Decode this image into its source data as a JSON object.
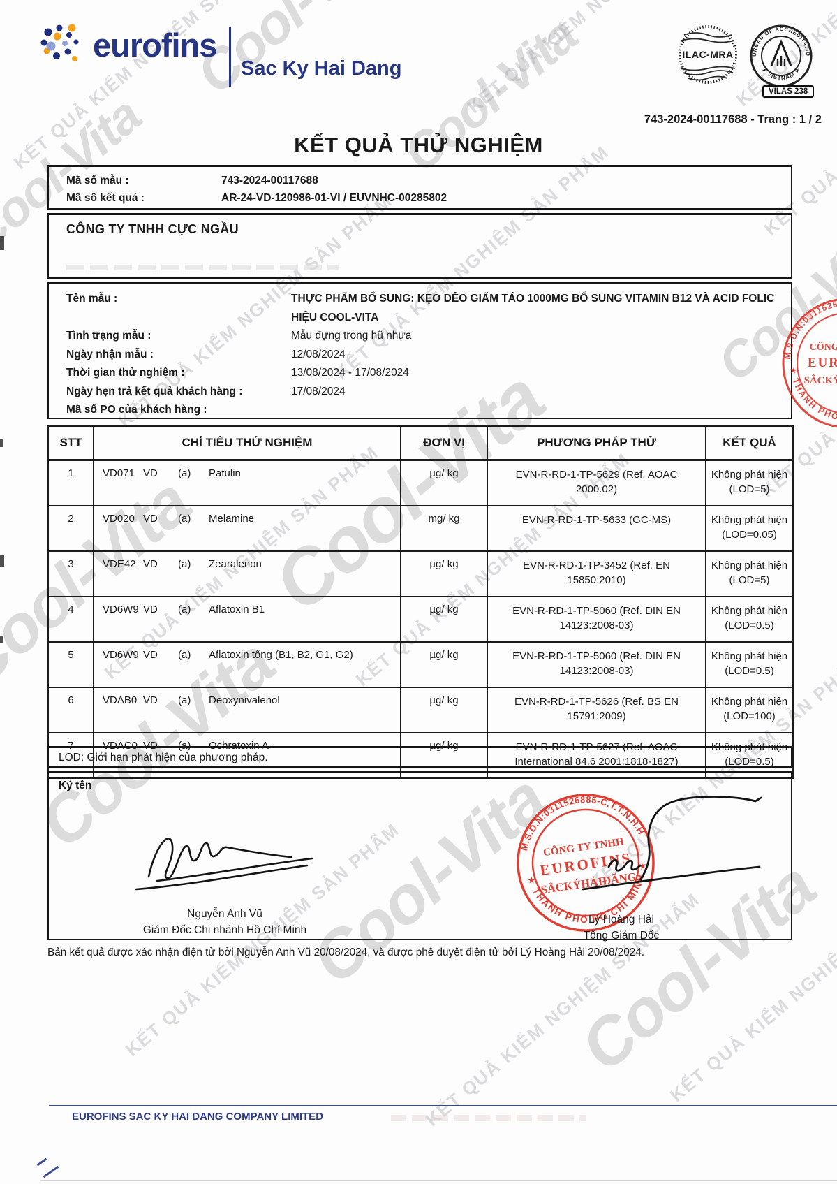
{
  "page": {
    "ref": "743-2024-00117688 - Trang : 1 / 2",
    "title": "KẾT QUẢ THỬ NGHIỆM"
  },
  "header": {
    "brand": "eurofins",
    "division": "Sac Ky Hai Dang",
    "marks": {
      "ilac": "ILAC-MRA",
      "boa_ring_top": "BUREAU OF ACCREDITATION",
      "boa_ring_bottom": "★ VIETNAM ★",
      "vilas": "VILAS 238"
    }
  },
  "info": {
    "sample_id_label": "Mã số mẫu :",
    "sample_id": "743-2024-00117688",
    "result_id_label": "Mã số kết quả :",
    "result_id": "AR-24-VD-120986-01-VI / EUVNHC-00285802"
  },
  "customer": {
    "company": "CÔNG TY TNHH CỰC NGẦU"
  },
  "sample": {
    "fields": [
      {
        "label": "Tên mẫu :",
        "value": "THỰC PHẨM BỔ SUNG: KẸO DẺO GIẤM TÁO 1000MG BỔ SUNG VITAMIN B12 VÀ ACID FOLIC HIỆU COOL-VITA"
      },
      {
        "label": "Tình trạng mẫu :",
        "value": "Mẫu đựng trong hũ nhựa"
      },
      {
        "label": "Ngày nhận mẫu :",
        "value": "12/08/2024"
      },
      {
        "label": "Thời gian thử nghiệm :",
        "value": "13/08/2024 - 17/08/2024"
      },
      {
        "label": "Ngày hẹn trả kết quả khách hàng :",
        "value": "17/08/2024"
      },
      {
        "label": "Mã số PO của khách hàng :",
        "value": ""
      }
    ]
  },
  "table": {
    "headers": [
      "STT",
      "CHỈ TIÊU THỬ NGHIỆM",
      "ĐƠN VỊ",
      "PHƯƠNG PHÁP THỬ",
      "KẾT QUẢ"
    ],
    "rows": [
      {
        "stt": "1",
        "code": "VD071",
        "group": "VD",
        "sub": "(a)",
        "name": "Patulin",
        "unit": "µg/ kg",
        "method": "EVN-R-RD-1-TP-5629 (Ref. AOAC 2000.02)",
        "result": "Không phát hiện",
        "lod": "(LOD=5)"
      },
      {
        "stt": "2",
        "code": "VD020",
        "group": "VD",
        "sub": "(a)",
        "name": "Melamine",
        "unit": "mg/ kg",
        "method": "EVN-R-RD-1-TP-5633 (GC-MS)",
        "result": "Không phát hiện",
        "lod": "(LOD=0.05)"
      },
      {
        "stt": "3",
        "code": "VDE42",
        "group": "VD",
        "sub": "(a)",
        "name": "Zearalenon",
        "unit": "µg/ kg",
        "method": "EVN-R-RD-1-TP-3452 (Ref. EN 15850:2010)",
        "result": "Không phát hiện",
        "lod": "(LOD=5)"
      },
      {
        "stt": "4",
        "code": "VD6W9",
        "group": "VD",
        "sub": "(a)",
        "name": "Aflatoxin B1",
        "unit": "µg/ kg",
        "method": "EVN-R-RD-1-TP-5060 (Ref. DIN EN 14123:2008-03)",
        "result": "Không phát hiện",
        "lod": "(LOD=0.5)"
      },
      {
        "stt": "5",
        "code": "VD6W9",
        "group": "VD",
        "sub": "(a)",
        "name": "Aflatoxin tổng (B1, B2, G1, G2)",
        "unit": "µg/ kg",
        "method": "EVN-R-RD-1-TP-5060 (Ref. DIN EN 14123:2008-03)",
        "result": "Không phát hiện",
        "lod": "(LOD=0.5)"
      },
      {
        "stt": "6",
        "code": "VDAB0",
        "group": "VD",
        "sub": "(a)",
        "name": "Deoxynivalenol",
        "unit": "µg/ kg",
        "method": "EVN-R-RD-1-TP-5626 (Ref. BS EN 15791:2009)",
        "result": "Không phát hiện",
        "lod": "(LOD=100)"
      },
      {
        "stt": "7",
        "code": "VDAC0",
        "group": "VD",
        "sub": "(a)",
        "name": "Ochratoxin A",
        "unit": "µg/ kg",
        "method": "EVN-R-RD-1-TP-5627 (Ref. AOAC International 84.6 2001:1818-1827)",
        "result": "Không phát hiện",
        "lod": "(LOD=0.5)"
      }
    ]
  },
  "lod_note": "LOD: Giới hạn phát hiện của phương pháp.",
  "signature": {
    "label": "Ký tên",
    "left_name": "Nguyễn Anh Vũ",
    "left_title": "Giám Đốc Chi nhánh Hồ Chí Minh",
    "right_name": "Lý Hoàng Hải",
    "right_title": "Tổng Giám Đốc",
    "stamp": {
      "ring_top": "M.S.D.N:0311526885-C.T.T.N.H.H",
      "ring_bottom": "★ THÀNH PHỐ HỒ CHÍ MINH ★",
      "line1": "CÔNG TY TNHH",
      "line2": "EUROFINS",
      "line3": "SẮCKÝHẢIĐĂNG"
    }
  },
  "confirmation": "Bản kết quả được xác nhận điện tử bởi Nguyễn Anh Vũ 20/08/2024, và được phê duyệt điện tử bởi Lý Hoàng Hải 20/08/2024.",
  "footer": {
    "company": "EUROFINS SAC KY HAI DANG COMPANY LIMITED"
  },
  "watermarks": {
    "brand": "Cool-Vita",
    "qc": "KẾT QUẢ KIỂM NGHIỆM SẢN PHẨM"
  },
  "colors": {
    "brand_blue": "#273585",
    "stamp_red": "#dd2a1e",
    "ink_black": "#1a1a1a"
  }
}
